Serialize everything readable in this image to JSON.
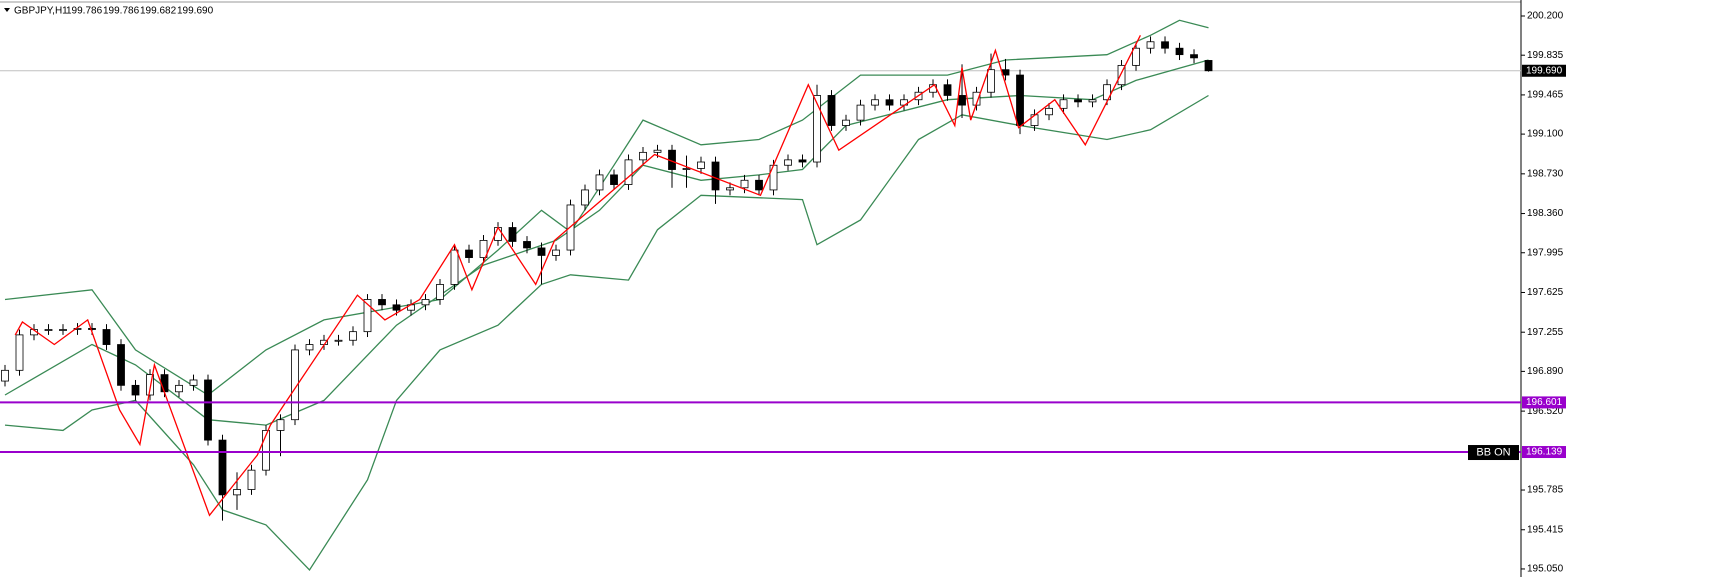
{
  "chart_data": {
    "type": "candlestick",
    "title": "GBPJPY,H1",
    "header_values": [
      {
        "value": 199.786,
        "label": "199.786"
      },
      {
        "value": 199.786,
        "label": "199.786"
      },
      {
        "value": 199.682,
        "label": "199.682"
      },
      {
        "value": 199.69,
        "label": "199.690"
      }
    ],
    "xlim": [
      -0.345,
      104.55
    ],
    "ylim": [
      194.975,
      200.349
    ],
    "yticks": [
      {
        "value": 200.2,
        "label": "200.200"
      },
      199.835,
      199.465,
      {
        "value": 199.1,
        "label": "199.100"
      },
      {
        "value": 198.73,
        "label": "198.730"
      },
      {
        "value": 198.36,
        "label": "198.360"
      },
      197.995,
      197.625,
      197.255,
      {
        "value": 196.89,
        "label": "196.890"
      },
      {
        "value": 196.52,
        "label": "196.520"
      },
      195.785,
      195.415,
      {
        "value": 195.05,
        "label": "195.050"
      }
    ],
    "bull_color": "#ffffff",
    "bear_color": "#000000",
    "open": [
      196.8,
      196.9,
      197.23,
      197.28,
      197.28,
      197.28,
      197.29,
      197.28,
      197.14,
      196.76,
      196.67,
      196.86,
      196.7,
      196.76,
      196.81,
      196.25,
      195.74,
      195.79,
      195.97,
      196.34,
      196.44,
      197.09,
      197.14,
      197.18,
      197.18,
      197.26,
      197.56,
      197.51,
      197.46,
      197.51,
      197.56,
      197.7,
      198.02,
      197.95,
      198.11,
      198.23,
      198.1,
      198.04,
      197.97,
      198.02,
      198.44,
      198.58,
      198.72,
      198.63,
      198.86,
      198.93,
      198.95,
      198.77,
      198.78,
      198.84,
      198.58,
      198.6,
      198.67,
      198.58,
      198.81,
      198.86,
      198.84,
      199.46,
      199.18,
      199.23,
      199.37,
      199.42,
      199.37,
      199.42,
      199.49,
      199.56,
      199.46,
      199.37,
      199.49,
      199.7,
      199.65,
      199.18,
      199.28,
      199.34,
      199.42,
      199.4,
      199.42,
      199.56,
      199.74,
      199.9,
      199.96,
      199.9,
      199.84,
      199.786
    ],
    "high": [
      196.95,
      197.28,
      197.33,
      197.33,
      197.33,
      197.34,
      197.34,
      197.33,
      197.19,
      196.81,
      196.91,
      196.91,
      196.81,
      196.86,
      196.86,
      196.3,
      195.95,
      196.02,
      196.39,
      196.49,
      197.14,
      197.19,
      197.23,
      197.23,
      197.31,
      197.61,
      197.61,
      197.56,
      197.56,
      197.61,
      197.75,
      198.07,
      198.07,
      198.16,
      198.28,
      198.28,
      198.15,
      198.09,
      198.07,
      198.49,
      198.63,
      198.77,
      198.77,
      198.91,
      198.98,
      199.0,
      199.0,
      198.9,
      198.89,
      198.89,
      198.65,
      198.72,
      198.72,
      198.86,
      198.91,
      198.91,
      199.56,
      199.51,
      199.28,
      199.42,
      199.47,
      199.47,
      199.47,
      199.54,
      199.61,
      199.61,
      199.75,
      199.54,
      199.85,
      199.8,
      199.7,
      199.33,
      199.39,
      199.47,
      199.47,
      199.47,
      199.61,
      199.79,
      199.95,
      200.01,
      200.01,
      199.95,
      199.89,
      199.786
    ],
    "low": [
      196.75,
      196.85,
      197.18,
      197.23,
      197.23,
      197.23,
      197.23,
      197.09,
      196.71,
      196.62,
      196.62,
      196.65,
      196.65,
      196.71,
      196.2,
      195.5,
      195.6,
      195.74,
      195.92,
      196.1,
      196.39,
      197.04,
      197.09,
      197.13,
      197.13,
      197.21,
      197.46,
      197.41,
      197.41,
      197.46,
      197.51,
      197.65,
      197.9,
      197.9,
      198.06,
      198.05,
      197.99,
      197.7,
      197.92,
      197.97,
      198.39,
      198.53,
      198.58,
      198.58,
      198.81,
      198.88,
      198.6,
      198.6,
      198.73,
      198.45,
      198.53,
      198.55,
      198.53,
      198.53,
      198.76,
      198.79,
      198.79,
      199.13,
      199.13,
      199.18,
      199.32,
      199.32,
      199.32,
      199.37,
      199.44,
      199.41,
      199.25,
      199.32,
      199.44,
      199.6,
      199.1,
      199.13,
      199.23,
      199.29,
      199.35,
      199.35,
      199.37,
      199.51,
      199.69,
      199.85,
      199.85,
      199.79,
      199.76,
      199.682
    ],
    "close": [
      196.9,
      197.23,
      197.28,
      197.28,
      197.28,
      197.29,
      197.28,
      197.14,
      196.76,
      196.67,
      196.86,
      196.7,
      196.76,
      196.81,
      196.25,
      195.74,
      195.79,
      195.97,
      196.34,
      196.44,
      197.09,
      197.14,
      197.18,
      197.18,
      197.26,
      197.56,
      197.51,
      197.46,
      197.51,
      197.56,
      197.7,
      198.02,
      197.95,
      198.11,
      198.23,
      198.1,
      198.04,
      197.97,
      198.02,
      198.44,
      198.58,
      198.72,
      198.63,
      198.86,
      198.93,
      198.95,
      198.77,
      198.78,
      198.84,
      198.58,
      198.6,
      198.67,
      198.58,
      198.81,
      198.86,
      198.84,
      199.46,
      199.18,
      199.23,
      199.37,
      199.42,
      199.37,
      199.42,
      199.49,
      199.56,
      199.46,
      199.37,
      199.49,
      199.7,
      199.65,
      199.18,
      199.28,
      199.34,
      199.42,
      199.4,
      199.42,
      199.56,
      199.74,
      199.9,
      199.96,
      199.9,
      199.84,
      199.81,
      199.69
    ],
    "bands": [
      {
        "color": "#3a8a55",
        "x": [
          0,
          6,
          9,
          14,
          18,
          22,
          30,
          34,
          37,
          39,
          42,
          44,
          48,
          52,
          55,
          59,
          65,
          69,
          76,
          79,
          81,
          83
        ],
        "values": [
          197.56,
          197.65,
          197.09,
          196.67,
          197.09,
          197.37,
          197.56,
          198.02,
          198.39,
          198.19,
          198.81,
          199.23,
          199.0,
          199.05,
          199.23,
          199.65,
          199.65,
          199.79,
          199.84,
          200.02,
          200.16,
          200.09
        ]
      },
      {
        "color": "#3a8a55",
        "x": [
          0,
          6,
          9,
          14,
          18,
          22,
          27,
          33,
          38,
          41,
          44,
          48,
          52,
          55,
          58,
          65,
          70,
          75,
          78,
          83
        ],
        "values": [
          196.67,
          197.14,
          196.95,
          196.44,
          196.39,
          196.62,
          197.32,
          197.88,
          198.11,
          198.39,
          198.81,
          198.67,
          198.72,
          198.77,
          199.18,
          199.42,
          199.46,
          199.42,
          199.6,
          199.79
        ]
      },
      {
        "color": "#3a8a55",
        "x": [
          0,
          4,
          6,
          9,
          13,
          15,
          18,
          21,
          25,
          27,
          30,
          34,
          37,
          39,
          43,
          45,
          48,
          55,
          56,
          59,
          63,
          66,
          70,
          76,
          79,
          83
        ],
        "values": [
          196.39,
          196.34,
          196.53,
          196.62,
          196.02,
          195.6,
          195.46,
          195.04,
          195.88,
          196.62,
          197.09,
          197.32,
          197.7,
          197.79,
          197.74,
          198.21,
          198.53,
          198.49,
          198.07,
          198.3,
          199.05,
          199.28,
          199.18,
          199.05,
          199.14,
          199.46
        ]
      }
    ],
    "zigzag": {
      "color": "#ff0000",
      "x": [
        0.7,
        1.2,
        3.4,
        5.7,
        7.9,
        9.3,
        10.3,
        14.1,
        17.4,
        18.3,
        24.3,
        26.2,
        28.6,
        31.0,
        32.2,
        34.0,
        36.6,
        37.9,
        44.8,
        52.1,
        55.4,
        57.5,
        64.1,
        65.5,
        66.0,
        66.6,
        68.3,
        69.9,
        72.4,
        74.5,
        78.3
      ],
      "values": [
        197.23,
        197.35,
        197.14,
        197.37,
        196.53,
        196.21,
        196.95,
        195.55,
        196.11,
        196.39,
        197.6,
        197.37,
        197.56,
        198.07,
        197.65,
        198.23,
        197.7,
        198.11,
        198.91,
        198.53,
        199.56,
        198.95,
        199.56,
        199.18,
        199.72,
        199.23,
        199.88,
        199.16,
        199.42,
        199.0,
        200.02
      ]
    },
    "levels": [
      {
        "value": 196.601,
        "color": "#9900cc"
      },
      {
        "value": 196.139,
        "color": "#9900cc"
      }
    ],
    "current_price": {
      "value": 199.69,
      "label": "199.690"
    },
    "indicator_label": "BB ON"
  }
}
